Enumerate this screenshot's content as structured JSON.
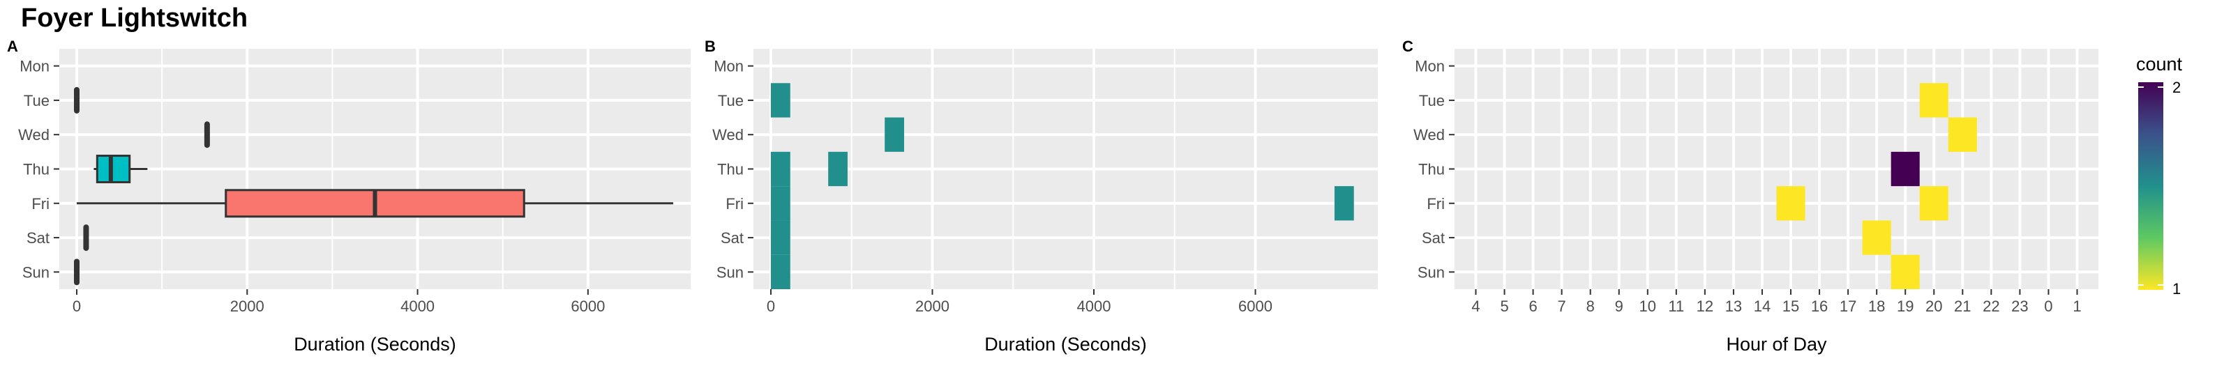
{
  "title": "Foyer Lightswitch",
  "colors": {
    "panel_bg": "#ebebeb",
    "grid_major": "#ffffff",
    "weekday_box": "#00bfc4",
    "weekend_box": "#f8766d",
    "bin_fill": "#21908c",
    "viridis": [
      "#fde725",
      "#5ec962",
      "#21908c",
      "#3b528b",
      "#440154"
    ]
  },
  "legend": {
    "title": "count",
    "labels": [
      "2",
      "1"
    ]
  },
  "chart_data": [
    {
      "tag": "A",
      "type": "boxplot",
      "orientation": "horizontal",
      "xlabel": "Duration (Seconds)",
      "ylabel": "",
      "xlim": [
        0,
        7000
      ],
      "x_ticks": [
        "0",
        "2000",
        "4000",
        "6000"
      ],
      "x_tick_values": [
        0,
        2000,
        4000,
        6000
      ],
      "categories": [
        "Mon",
        "Tue",
        "Wed",
        "Thu",
        "Fri",
        "Sat",
        "Sun"
      ],
      "boxes": [
        {
          "day": "Tue",
          "min": 0,
          "q1": 0,
          "median": 0,
          "q3": 0,
          "max": 0
        },
        {
          "day": "Wed",
          "min": 1530,
          "q1": 1530,
          "median": 1530,
          "q3": 1530,
          "max": 1530
        },
        {
          "day": "Thu",
          "min": 200,
          "q1": 240,
          "median": 400,
          "q3": 620,
          "max": 830
        },
        {
          "day": "Fri",
          "min": 0,
          "q1": 1750,
          "median": 3500,
          "q3": 5250,
          "max": 7000
        },
        {
          "day": "Sat",
          "min": 110,
          "q1": 110,
          "median": 110,
          "q3": 110,
          "max": 110
        },
        {
          "day": "Sun",
          "min": 0,
          "q1": 0,
          "median": 0,
          "q3": 0,
          "max": 0
        }
      ],
      "weekend_days": [
        "Fri",
        "Sat",
        "Sun"
      ]
    },
    {
      "tag": "B",
      "type": "bar",
      "subtype": "binned-duration-tiles",
      "xlabel": "Duration (Seconds)",
      "ylabel": "",
      "xlim": [
        0,
        7300
      ],
      "x_ticks": [
        "0",
        "2000",
        "4000",
        "6000"
      ],
      "x_tick_values": [
        0,
        2000,
        4000,
        6000
      ],
      "categories": [
        "Mon",
        "Tue",
        "Wed",
        "Thu",
        "Fri",
        "Sat",
        "Sun"
      ],
      "bin_width": 240,
      "bins": [
        {
          "day": "Tue",
          "x": 120
        },
        {
          "day": "Wed",
          "x": 1530
        },
        {
          "day": "Thu",
          "x": 120
        },
        {
          "day": "Thu",
          "x": 830
        },
        {
          "day": "Fri",
          "x": 120
        },
        {
          "day": "Fri",
          "x": 7100
        },
        {
          "day": "Sat",
          "x": 120
        },
        {
          "day": "Sun",
          "x": 120
        }
      ]
    },
    {
      "tag": "C",
      "type": "heatmap",
      "xlabel": "Hour of Day",
      "ylabel": "",
      "x_categories": [
        "4",
        "5",
        "6",
        "7",
        "8",
        "9",
        "10",
        "11",
        "12",
        "13",
        "14",
        "15",
        "16",
        "17",
        "18",
        "19",
        "20",
        "21",
        "22",
        "23",
        "0",
        "1"
      ],
      "categories": [
        "Mon",
        "Tue",
        "Wed",
        "Thu",
        "Fri",
        "Sat",
        "Sun"
      ],
      "count_range": [
        1,
        2
      ],
      "cells": [
        {
          "day": "Tue",
          "hour": "20",
          "count": 1
        },
        {
          "day": "Wed",
          "hour": "21",
          "count": 1
        },
        {
          "day": "Thu",
          "hour": "19",
          "count": 2
        },
        {
          "day": "Fri",
          "hour": "15",
          "count": 1
        },
        {
          "day": "Fri",
          "hour": "20",
          "count": 1
        },
        {
          "day": "Sat",
          "hour": "18",
          "count": 1
        },
        {
          "day": "Sun",
          "hour": "19",
          "count": 1
        }
      ]
    }
  ]
}
